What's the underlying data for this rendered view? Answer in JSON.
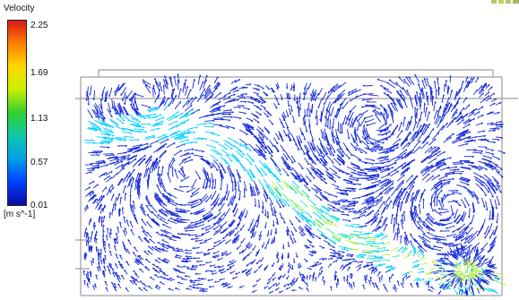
{
  "legend": {
    "title": "Velocity",
    "ticks": [
      "2.25",
      "1.69",
      "1.13",
      "0.57",
      "0.01"
    ],
    "unit": "[m s^-1]",
    "colormap": [
      "#d7191c",
      "#ff7f00",
      "#ffd700",
      "#c8f000",
      "#30d030",
      "#10c8a8",
      "#00a0e8",
      "#0040ff",
      "#0a0aa0"
    ]
  },
  "field": {
    "arrow_color": "#1428d8",
    "jet_colors": [
      "#00d0ff",
      "#40f0a0",
      "#c0f040"
    ],
    "frame_color": "#888888"
  }
}
